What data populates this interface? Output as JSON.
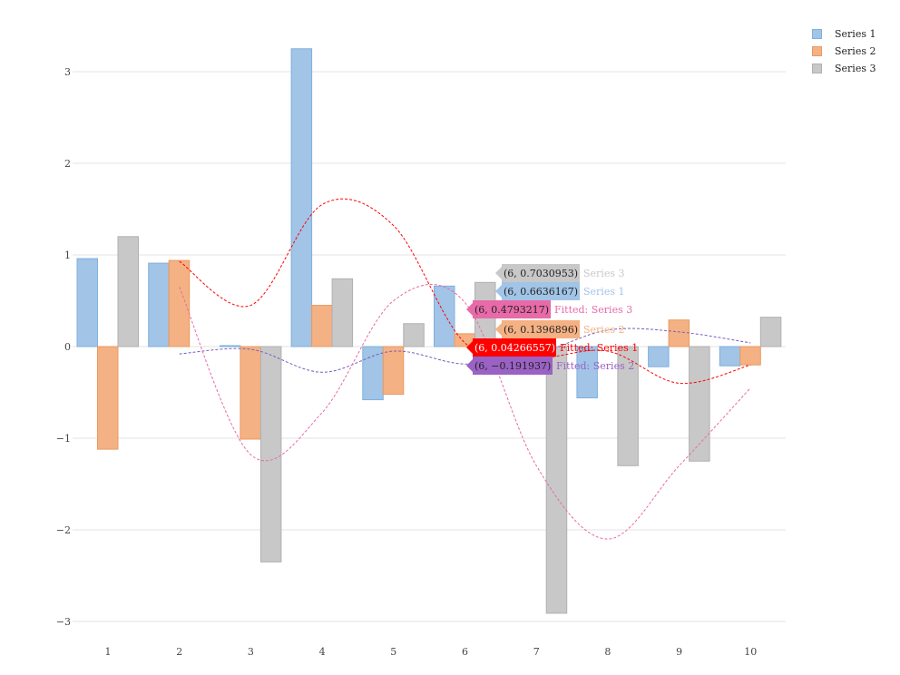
{
  "chart_data": {
    "type": "bar",
    "categories": [
      "1",
      "2",
      "3",
      "4",
      "5",
      "6",
      "7",
      "8",
      "9",
      "10"
    ],
    "series": [
      {
        "name": "Series 1",
        "color": "#a1c4e7",
        "stroke": "#7fb0dd",
        "values": [
          0.96,
          0.91,
          0.01,
          3.25,
          -0.58,
          0.66,
          -0.29,
          -0.56,
          -0.22,
          -0.21
        ]
      },
      {
        "name": "Series 2",
        "color": "#f4b183",
        "stroke": "#ea9a60",
        "values": [
          -1.12,
          0.94,
          -1.01,
          0.45,
          -0.52,
          0.14,
          0.22,
          0.0,
          0.29,
          -0.2
        ]
      },
      {
        "name": "Series 3",
        "color": "#c8c8c8",
        "stroke": "#b0b0b0",
        "values": [
          1.2,
          0.0,
          -2.35,
          0.74,
          0.25,
          0.7,
          -2.91,
          -1.3,
          -1.25,
          0.32
        ]
      }
    ],
    "fitted": [
      {
        "name": "Fitted: Series 1",
        "color": "#ff0000",
        "points": [
          [
            2,
            0.93
          ],
          [
            3,
            0.45
          ],
          [
            4,
            1.55
          ],
          [
            5,
            1.32
          ],
          [
            6,
            0.04
          ],
          [
            7,
            -0.12
          ],
          [
            8,
            -0.05
          ],
          [
            9,
            -0.4
          ],
          [
            10,
            -0.2
          ]
        ]
      },
      {
        "name": "Fitted: Series 2",
        "color": "#7a5bbf",
        "points": [
          [
            2,
            -0.08
          ],
          [
            3,
            -0.03
          ],
          [
            4,
            -0.28
          ],
          [
            5,
            -0.05
          ],
          [
            6,
            -0.19
          ],
          [
            7,
            -0.08
          ],
          [
            8,
            0.18
          ],
          [
            9,
            0.16
          ],
          [
            10,
            0.04
          ]
        ]
      },
      {
        "name": "Fitted: Series 3",
        "color": "#e86aa8",
        "points": [
          [
            2,
            0.65
          ],
          [
            3,
            -1.18
          ],
          [
            4,
            -0.72
          ],
          [
            5,
            0.5
          ],
          [
            6,
            0.48
          ],
          [
            7,
            -1.3
          ],
          [
            8,
            -2.1
          ],
          [
            9,
            -1.3
          ],
          [
            10,
            -0.45
          ]
        ]
      }
    ],
    "tooltips": [
      {
        "label": "(6, 0.7030953)",
        "series": "Series 3",
        "color": "#c8c8c8",
        "value": 0.7030953,
        "text_color": "#222222",
        "series_color": "#c8c8c8",
        "pointer": "right"
      },
      {
        "label": "(6, 0.6636167)",
        "series": "Series 1",
        "color": "#a1c4e7",
        "value": 0.6636167,
        "text_color": "#222222",
        "series_color": "#a1c4e7",
        "pointer": "right"
      },
      {
        "label": "(6, 0.4793217)",
        "series": "Fitted: Series 3",
        "color": "#e86aa8",
        "value": 0.4793217,
        "text_color": "#222222",
        "series_color": "#e86aa8",
        "pointer": "left"
      },
      {
        "label": "(6, 0.1396896)",
        "series": "Series 2",
        "color": "#f4b183",
        "value": 0.1396896,
        "text_color": "#222222",
        "series_color": "#f4b183",
        "pointer": "right"
      },
      {
        "label": "(6, 0.04266557)",
        "series": "Fitted: Series 1",
        "color": "#ff0000",
        "value": 0.04266557,
        "text_color": "#ffffff",
        "series_color": "#ff0000",
        "pointer": "left"
      },
      {
        "label": "(6, −0.191937)",
        "series": "Fitted: Series 2",
        "color": "#9a62c4",
        "value": -0.191937,
        "text_color": "#222222",
        "series_color": "#9a62c4",
        "pointer": "left"
      }
    ],
    "y_ticks": [
      "3",
      "2",
      "1",
      "0",
      "−1",
      "−2",
      "−3"
    ],
    "y_tick_values": [
      3,
      2,
      1,
      0,
      -1,
      -2,
      -3
    ],
    "ylim": [
      -3.3,
      3.5
    ],
    "grid": true,
    "legend_position": "top-right"
  }
}
